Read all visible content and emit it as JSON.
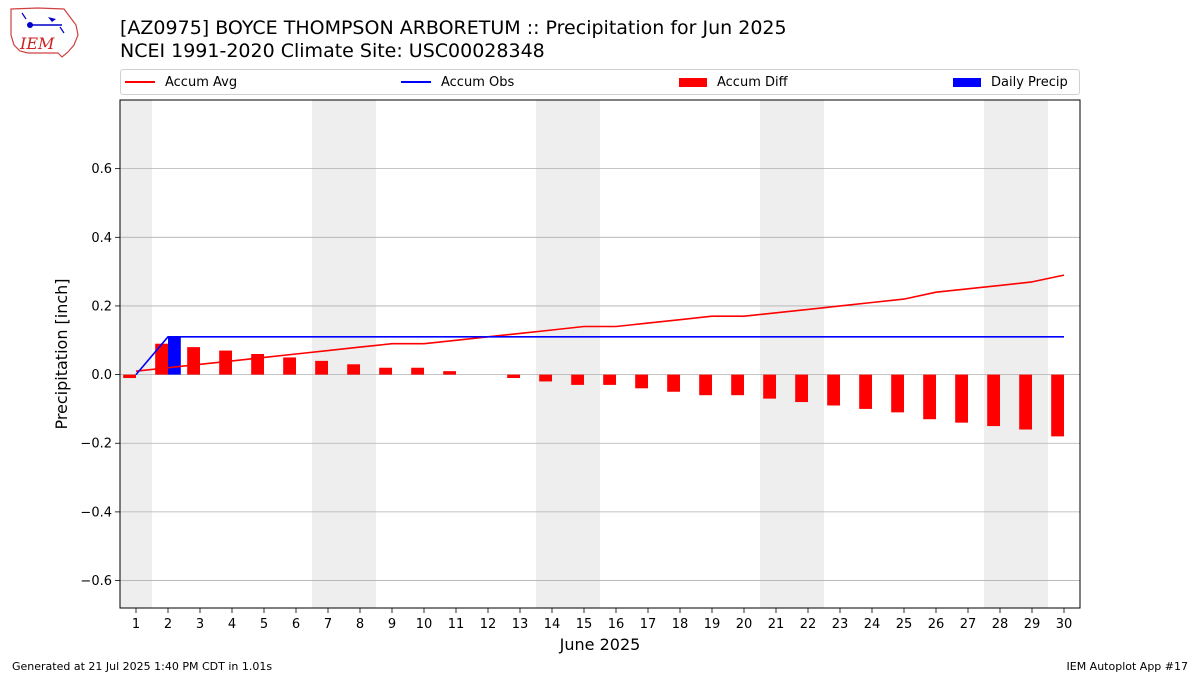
{
  "header": {
    "title_line1": "[AZ0975] BOYCE THOMPSON ARBORETUM :: Precipitation for Jun 2025",
    "title_line2": "NCEI 1991-2020 Climate Site: USC00028348"
  },
  "logo": {
    "text": "IEM"
  },
  "footer": {
    "left": "Generated at 21 Jul 2025 1:40 PM CDT in 1.01s",
    "right": "IEM Autoplot App #17"
  },
  "legend": {
    "items": [
      {
        "label": "Accum Avg",
        "kind": "line",
        "color": "#ff0000"
      },
      {
        "label": "Accum Obs",
        "kind": "line",
        "color": "#0000ff"
      },
      {
        "label": "Accum Diff",
        "kind": "patch",
        "color": "#ff0000"
      },
      {
        "label": "Daily Precip",
        "kind": "patch",
        "color": "#0000ff"
      }
    ]
  },
  "chart_data": {
    "type": "bar",
    "xlabel": "June 2025",
    "ylabel": "Precipitation [inch]",
    "xlim": [
      0.5,
      30.5
    ],
    "ylim": [
      -0.68,
      0.8
    ],
    "xticks": [
      1,
      2,
      3,
      4,
      5,
      6,
      7,
      8,
      9,
      10,
      11,
      12,
      13,
      14,
      15,
      16,
      17,
      18,
      19,
      20,
      21,
      22,
      23,
      24,
      25,
      26,
      27,
      28,
      29,
      30
    ],
    "yticks": [
      -0.6,
      -0.4,
      -0.2,
      0.0,
      0.2,
      0.4,
      0.6
    ],
    "ytick_labels": [
      "−0.6",
      "−0.4",
      "−0.2",
      "0.0",
      "0.2",
      "0.4",
      "0.6"
    ],
    "grid": "horizontal",
    "weekend_shading": [
      [
        0.5,
        1.5
      ],
      [
        6.5,
        8.5
      ],
      [
        13.5,
        15.5
      ],
      [
        20.5,
        22.5
      ],
      [
        27.5,
        29.5
      ]
    ],
    "days": [
      1,
      2,
      3,
      4,
      5,
      6,
      7,
      8,
      9,
      10,
      11,
      12,
      13,
      14,
      15,
      16,
      17,
      18,
      19,
      20,
      21,
      22,
      23,
      24,
      25,
      26,
      27,
      28,
      29,
      30
    ],
    "series": [
      {
        "name": "Accum Avg",
        "kind": "line",
        "color": "#ff0000",
        "values": [
          0.01,
          0.02,
          0.03,
          0.04,
          0.05,
          0.06,
          0.07,
          0.08,
          0.09,
          0.09,
          0.1,
          0.11,
          0.12,
          0.13,
          0.14,
          0.14,
          0.15,
          0.16,
          0.17,
          0.17,
          0.18,
          0.19,
          0.2,
          0.21,
          0.22,
          0.24,
          0.25,
          0.26,
          0.27,
          0.29
        ]
      },
      {
        "name": "Accum Obs",
        "kind": "line",
        "color": "#0000ff",
        "values": [
          0.0,
          0.11,
          0.11,
          0.11,
          0.11,
          0.11,
          0.11,
          0.11,
          0.11,
          0.11,
          0.11,
          0.11,
          0.11,
          0.11,
          0.11,
          0.11,
          0.11,
          0.11,
          0.11,
          0.11,
          0.11,
          0.11,
          0.11,
          0.11,
          0.11,
          0.11,
          0.11,
          0.11,
          0.11,
          0.11
        ]
      },
      {
        "name": "Accum Diff",
        "kind": "bar",
        "color": "#ff0000",
        "values": [
          -0.01,
          0.09,
          0.08,
          0.07,
          0.06,
          0.05,
          0.04,
          0.03,
          0.02,
          0.02,
          0.01,
          0.0,
          -0.01,
          -0.02,
          -0.03,
          -0.03,
          -0.04,
          -0.05,
          -0.06,
          -0.06,
          -0.07,
          -0.08,
          -0.09,
          -0.1,
          -0.11,
          -0.13,
          -0.14,
          -0.15,
          -0.16,
          -0.18
        ]
      },
      {
        "name": "Daily Precip",
        "kind": "bar",
        "color": "#0000ff",
        "values": [
          0,
          0.11,
          0,
          0,
          0,
          0,
          0,
          0,
          0,
          0,
          0,
          0,
          0,
          0,
          0,
          0,
          0,
          0,
          0,
          0,
          0,
          0,
          0,
          0,
          0,
          0,
          0,
          0,
          0,
          0
        ]
      }
    ]
  }
}
